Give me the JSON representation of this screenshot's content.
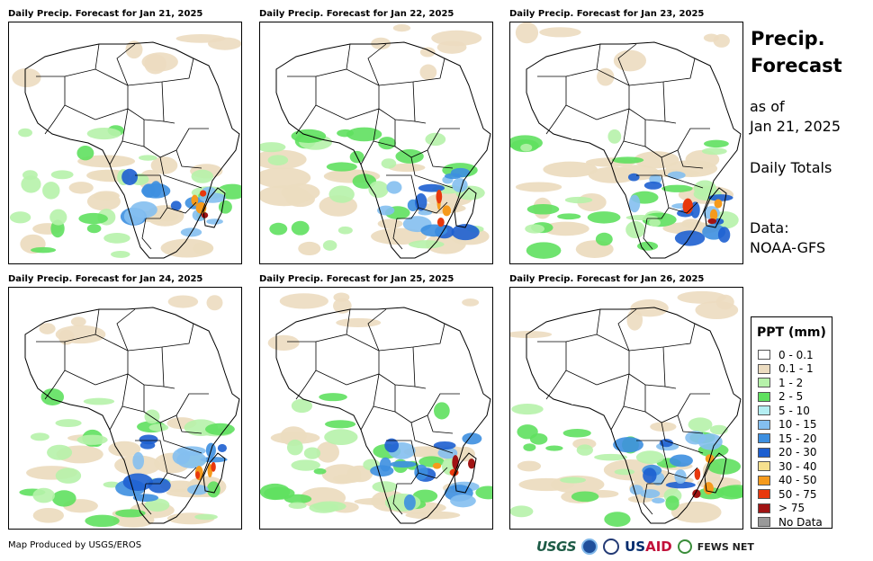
{
  "panels": [
    {
      "title": "Daily Precip. Forecast for Jan 21, 2025"
    },
    {
      "title": "Daily Precip. Forecast for Jan 22, 2025"
    },
    {
      "title": "Daily Precip. Forecast for Jan 23, 2025"
    },
    {
      "title": "Daily Precip. Forecast for Jan 24, 2025"
    },
    {
      "title": "Daily Precip. Forecast for Jan 25, 2025"
    },
    {
      "title": "Daily Precip. Forecast for Jan 26, 2025"
    }
  ],
  "side": {
    "title_line1": "Precip.",
    "title_line2": "Forecast",
    "asof_line1": "as of",
    "asof_line2": "Jan 21, 2025",
    "totals": "Daily Totals",
    "data_line1": "Data:",
    "data_line2": "NOAA-GFS"
  },
  "legend": {
    "title": "PPT (mm)",
    "items": [
      {
        "label": "0 - 0.1",
        "color": "#ffffff"
      },
      {
        "label": "0.1 - 1",
        "color": "#ecdcc0"
      },
      {
        "label": "1 - 2",
        "color": "#b6f2aa"
      },
      {
        "label": "2 - 5",
        "color": "#5fe05f"
      },
      {
        "label": "5 - 10",
        "color": "#b4eef2"
      },
      {
        "label": "10 - 15",
        "color": "#84bff0"
      },
      {
        "label": "15 - 20",
        "color": "#3d8fe0"
      },
      {
        "label": "20 - 30",
        "color": "#1d5fd0"
      },
      {
        "label": "30 - 40",
        "color": "#f6e08e"
      },
      {
        "label": "40 - 50",
        "color": "#f59a1c"
      },
      {
        "label": "50 - 75",
        "color": "#e8380d"
      },
      {
        "label": "> 75",
        "color": "#a01414"
      },
      {
        "label": "No Data",
        "color": "#999999"
      }
    ]
  },
  "credit": "Map Produced by USGS/EROS",
  "logos": {
    "usgs": "USGS",
    "usaid_a": "US",
    "usaid_b": "AID",
    "fews": "FEWS NET"
  }
}
